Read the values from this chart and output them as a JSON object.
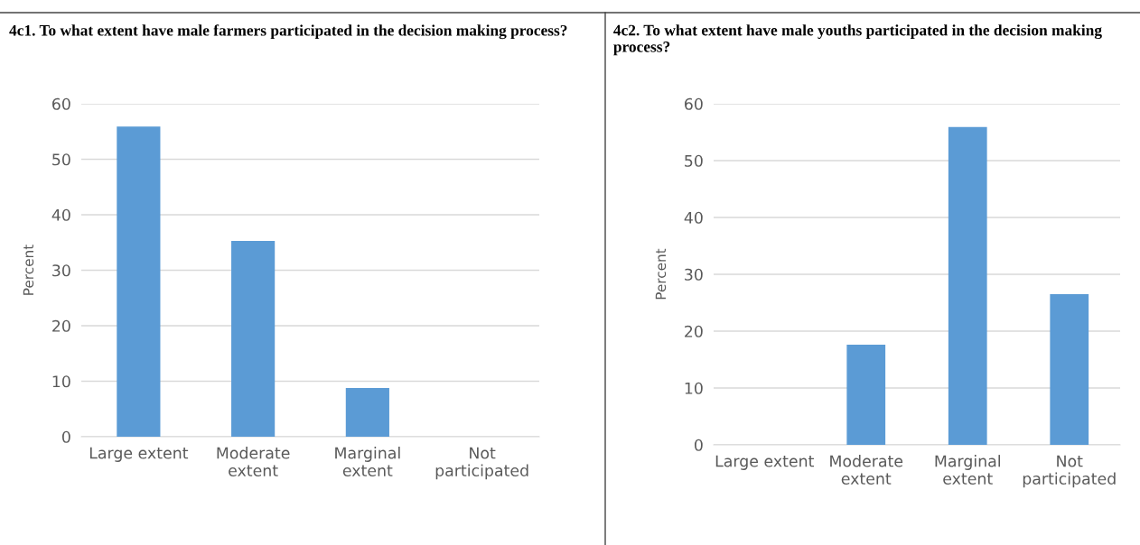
{
  "chart_data": [
    {
      "type": "bar",
      "title": "4c1. To what extent have male farmers participated in the decision making process?",
      "ylabel": "Percent",
      "categories": [
        "Large extent",
        "Moderate\nextent",
        "Marginal\nextent",
        "Not\nparticipated"
      ],
      "values": [
        55.9,
        35.3,
        8.8,
        0
      ],
      "color": "#5b9bd5",
      "ylim": [
        0,
        60
      ],
      "yticks": [
        0,
        10,
        20,
        30,
        40,
        50,
        60
      ],
      "grid": "y"
    },
    {
      "type": "bar",
      "title": "4c2. To what extent have male youths participated in the decision making process?",
      "ylabel": "Percent",
      "categories": [
        "Large extent",
        "Moderate\nextent",
        "Marginal\nextent",
        "Not\nparticipated"
      ],
      "values": [
        0,
        17.6,
        55.9,
        26.5
      ],
      "color": "#5b9bd5",
      "ylim": [
        0,
        60
      ],
      "yticks": [
        0,
        10,
        20,
        30,
        40,
        50,
        60
      ],
      "grid": "y"
    }
  ]
}
